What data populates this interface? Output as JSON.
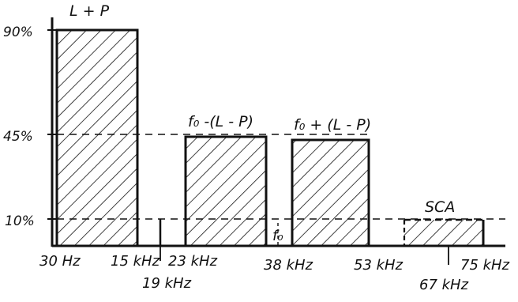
{
  "chart_data": {
    "type": "bar",
    "y_ticks": [
      "90%",
      "45%",
      "10%"
    ],
    "x_ticks": [
      "30 Hz",
      "15 kHz",
      "19 kHz",
      "23 kHz",
      "38 kHz",
      "53 kHz",
      "67 kHz",
      "75 kHz"
    ],
    "bars": [
      {
        "label": "L + P",
        "from": "30 Hz",
        "to": "15 kHz",
        "value_percent": 90,
        "style": "hatched"
      },
      {
        "label": "f₀ -(L - P)",
        "from": "23 kHz",
        "to": "38 kHz",
        "value_percent": 45,
        "style": "hatched"
      },
      {
        "label": "f₀ + (L - P)",
        "from": "38 kHz",
        "to": "53 kHz",
        "value_percent": 45,
        "style": "hatched"
      },
      {
        "label": "SCA",
        "from": "60 kHz",
        "to": "75 kHz",
        "value_percent": 10,
        "style": "hatched-dashed"
      }
    ],
    "pilot": {
      "frequency": "19 kHz",
      "value_percent": 10
    },
    "carrier_label": "f₀",
    "grid": "dashed reference lines at 90%, 45%, 10%"
  }
}
